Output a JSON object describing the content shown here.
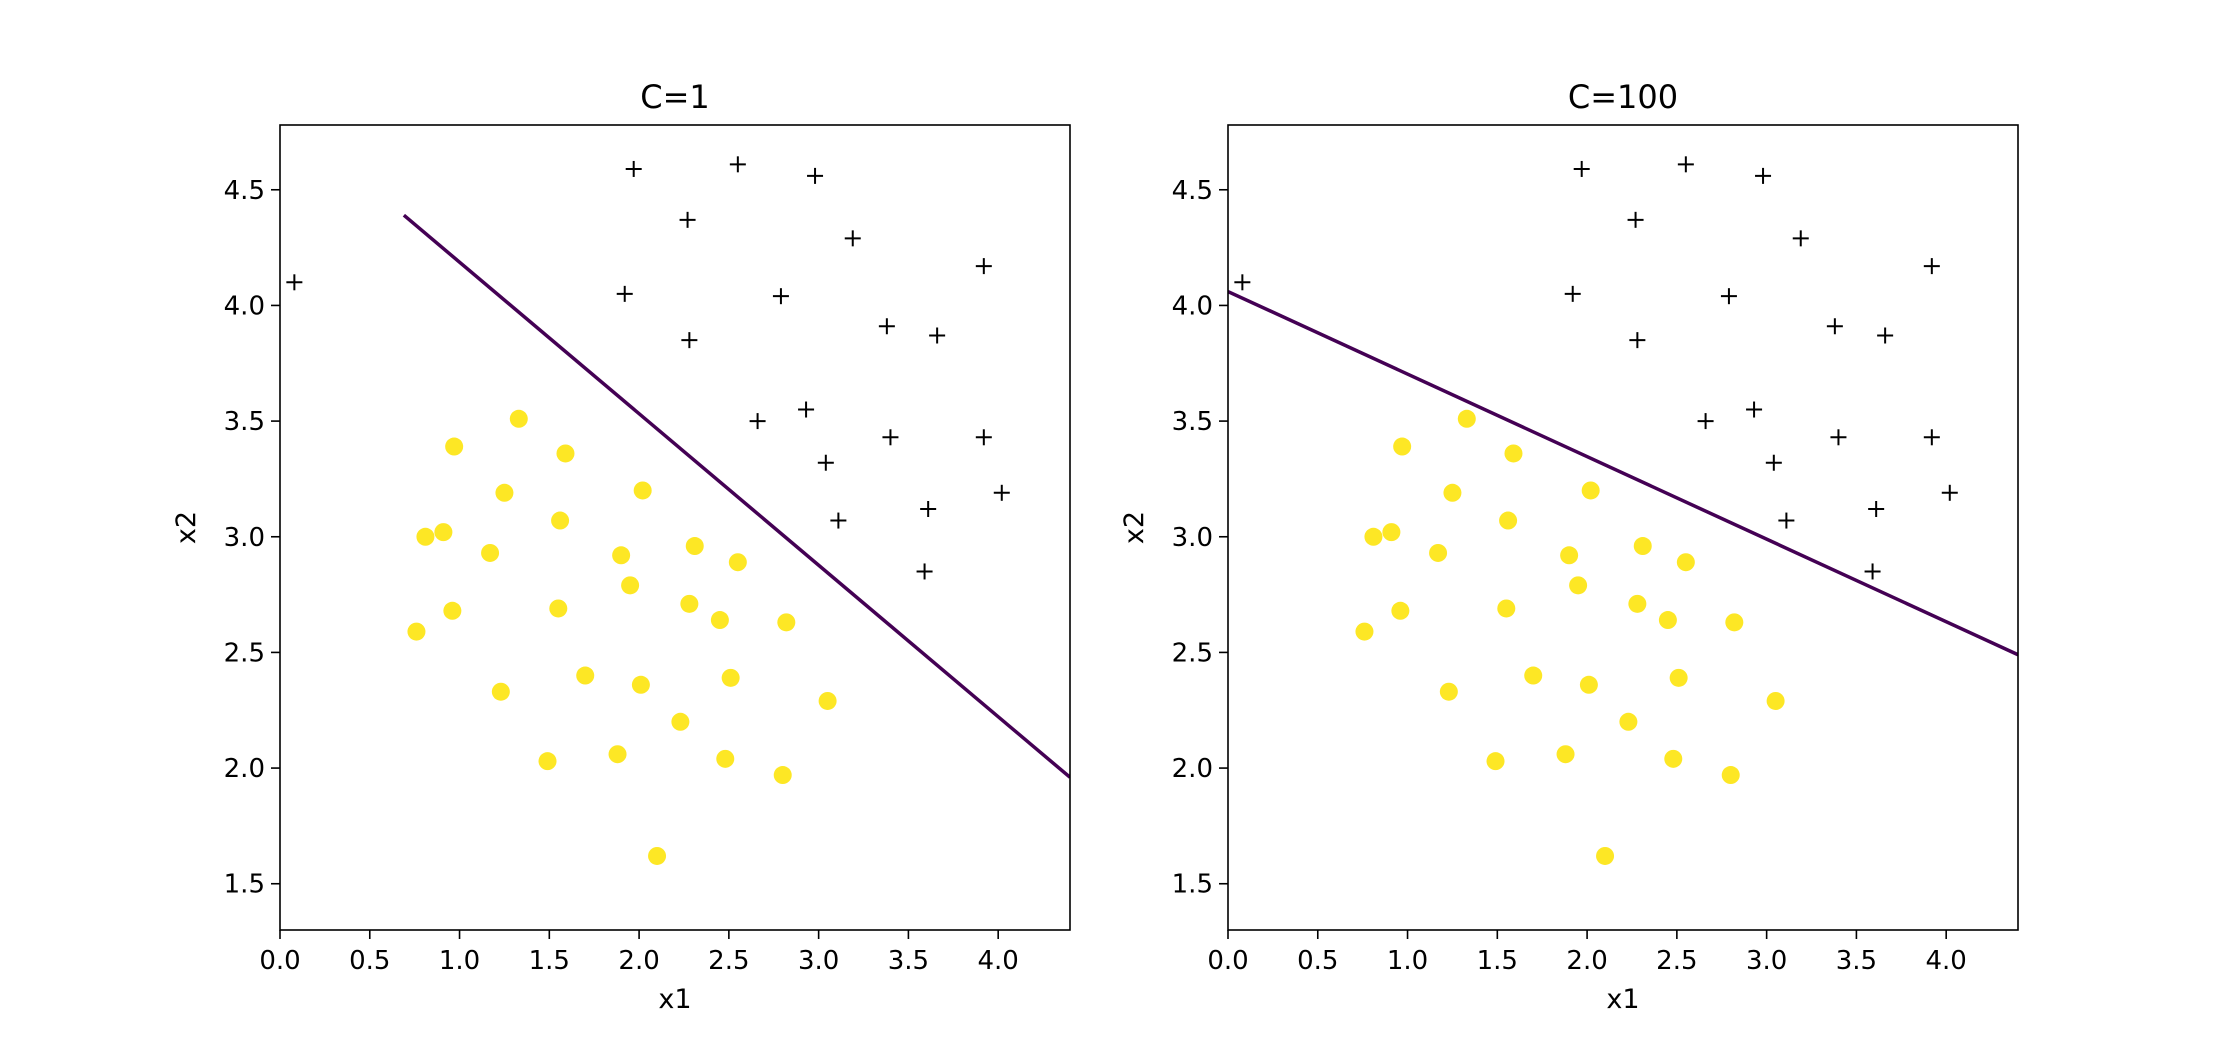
{
  "chart_data": [
    {
      "type": "scatter",
      "title": "C=1",
      "xlabel": "x1",
      "ylabel": "x2",
      "xlim": [
        0.0,
        4.4
      ],
      "ylim": [
        1.3,
        4.78
      ],
      "xticks": [
        "0.0",
        "0.5",
        "1.0",
        "1.5",
        "2.0",
        "2.5",
        "3.0",
        "3.5",
        "4.0"
      ],
      "yticks": [
        "1.5",
        "2.0",
        "2.5",
        "3.0",
        "3.5",
        "4.0",
        "4.5"
      ],
      "grid": false,
      "decision_boundary": {
        "color": "#440154",
        "points": [
          [
            0.69,
            4.39
          ],
          [
            4.4,
            1.96
          ]
        ]
      },
      "series": [
        {
          "marker": "circle",
          "color": "#fde725",
          "x": [
            1.33,
            0.97,
            1.59,
            1.25,
            2.02,
            0.81,
            0.91,
            1.17,
            1.56,
            1.9,
            2.31,
            2.55,
            1.95,
            0.76,
            0.96,
            1.55,
            2.28,
            2.45,
            2.82,
            1.7,
            2.01,
            2.51,
            1.23,
            2.23,
            3.05,
            1.49,
            1.88,
            2.48,
            2.8,
            2.1
          ],
          "y": [
            3.51,
            3.39,
            3.36,
            3.19,
            3.2,
            3.0,
            3.02,
            2.93,
            3.07,
            2.92,
            2.96,
            2.89,
            2.79,
            2.59,
            2.68,
            2.69,
            2.71,
            2.64,
            2.63,
            2.4,
            2.36,
            2.39,
            2.33,
            2.2,
            2.29,
            2.03,
            2.06,
            2.04,
            1.97,
            1.62
          ]
        },
        {
          "marker": "plus",
          "color": "#000000",
          "x": [
            0.08,
            1.97,
            2.55,
            2.98,
            2.27,
            3.19,
            3.92,
            1.92,
            2.79,
            3.38,
            3.66,
            2.28,
            2.66,
            2.93,
            3.4,
            3.92,
            3.04,
            3.61,
            4.02,
            3.11,
            3.59
          ],
          "y": [
            4.1,
            4.59,
            4.61,
            4.56,
            4.37,
            4.29,
            4.17,
            4.05,
            4.04,
            3.91,
            3.87,
            3.85,
            3.5,
            3.55,
            3.43,
            3.43,
            3.32,
            3.12,
            3.19,
            3.07,
            2.85
          ]
        }
      ]
    },
    {
      "type": "scatter",
      "title": "C=100",
      "xlabel": "x1",
      "ylabel": "x2",
      "xlim": [
        0.0,
        4.4
      ],
      "ylim": [
        1.3,
        4.78
      ],
      "xticks": [
        "0.0",
        "0.5",
        "1.0",
        "1.5",
        "2.0",
        "2.5",
        "3.0",
        "3.5",
        "4.0"
      ],
      "yticks": [
        "1.5",
        "2.0",
        "2.5",
        "3.0",
        "3.5",
        "4.0",
        "4.5"
      ],
      "grid": false,
      "decision_boundary": {
        "color": "#440154",
        "points": [
          [
            0.0,
            4.06
          ],
          [
            4.4,
            2.49
          ]
        ]
      },
      "series": [
        {
          "marker": "circle",
          "color": "#fde725",
          "x": [
            1.33,
            0.97,
            1.59,
            1.25,
            2.02,
            0.81,
            0.91,
            1.17,
            1.56,
            1.9,
            2.31,
            2.55,
            1.95,
            0.76,
            0.96,
            1.55,
            2.28,
            2.45,
            2.82,
            1.7,
            2.01,
            2.51,
            1.23,
            2.23,
            3.05,
            1.49,
            1.88,
            2.48,
            2.8,
            2.1
          ],
          "y": [
            3.51,
            3.39,
            3.36,
            3.19,
            3.2,
            3.0,
            3.02,
            2.93,
            3.07,
            2.92,
            2.96,
            2.89,
            2.79,
            2.59,
            2.68,
            2.69,
            2.71,
            2.64,
            2.63,
            2.4,
            2.36,
            2.39,
            2.33,
            2.2,
            2.29,
            2.03,
            2.06,
            2.04,
            1.97,
            1.62
          ]
        },
        {
          "marker": "plus",
          "color": "#000000",
          "x": [
            0.08,
            1.97,
            2.55,
            2.98,
            2.27,
            3.19,
            3.92,
            1.92,
            2.79,
            3.38,
            3.66,
            2.28,
            2.66,
            2.93,
            3.4,
            3.92,
            3.04,
            3.61,
            4.02,
            3.11,
            3.59
          ],
          "y": [
            4.1,
            4.59,
            4.61,
            4.56,
            4.37,
            4.29,
            4.17,
            4.05,
            4.04,
            3.91,
            3.87,
            3.85,
            3.5,
            3.55,
            3.43,
            3.43,
            3.32,
            3.12,
            3.19,
            3.07,
            2.85
          ]
        }
      ]
    }
  ]
}
